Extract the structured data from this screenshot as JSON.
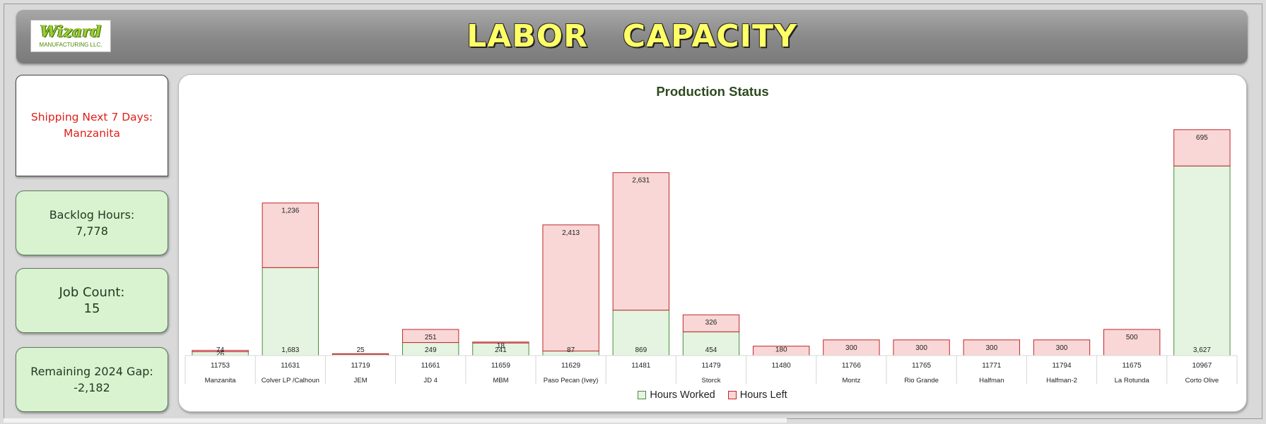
{
  "header": {
    "logo_brand": "Wizard",
    "logo_sub": "MANUFACTURING LLC.",
    "title": "LABOR  CAPACITY"
  },
  "cards": {
    "shipping": {
      "label": "Shipping Next 7 Days:",
      "value": "Manzanita"
    },
    "backlog": {
      "label": "Backlog Hours:",
      "value": "7,778"
    },
    "jobs": {
      "label": "Job Count:",
      "value": "15"
    },
    "gap": {
      "label": "Remaining 2024 Gap:",
      "value": "-2,182"
    }
  },
  "colors": {
    "worked_fill": "#e4f4e0",
    "worked_stroke": "#4f8a3f",
    "left_fill": "#f8d7d6",
    "left_stroke": "#c0262b"
  },
  "chart_data": {
    "type": "bar",
    "stacked": true,
    "title": "Production Status",
    "ylim": [
      0,
      4400
    ],
    "grid": false,
    "legend_position": "bottom",
    "jobs": [
      "11753",
      "11631",
      "11719",
      "11661",
      "11659",
      "11629",
      "11481",
      "11479",
      "11480",
      "11766",
      "11765",
      "11771",
      "11794",
      "11675",
      "10967"
    ],
    "customers": [
      {
        "name": "Manzanita",
        "span": 1
      },
      {
        "name": "Colver LP /Calhoun",
        "span": 1
      },
      {
        "name": "JEM",
        "span": 1
      },
      {
        "name": "JD 4",
        "span": 1
      },
      {
        "name": "MBM",
        "span": 1
      },
      {
        "name": "Paso Pecan (Ivey)",
        "span": 1
      },
      {
        "name": "Storck",
        "span": 3
      },
      {
        "name": "Montz",
        "span": 1
      },
      {
        "name": "Rio Grande",
        "span": 1
      },
      {
        "name": "Halfman",
        "span": 1
      },
      {
        "name": "Halfman-2",
        "span": 1
      },
      {
        "name": "La Rotunda",
        "span": 1
      },
      {
        "name": "Corto Olive",
        "span": 1
      }
    ],
    "series": [
      {
        "name": "Hours Worked",
        "values": [
          74,
          1683,
          25,
          249,
          241,
          87,
          869,
          454,
          0,
          0,
          0,
          0,
          0,
          0,
          3627
        ],
        "labels": [
          "74",
          "1,683",
          "25",
          "249",
          "241",
          "87",
          "869",
          "454",
          "",
          "",
          "",
          "",
          "",
          "",
          "3,627"
        ]
      },
      {
        "name": "Hours Left",
        "values": [
          26,
          1236,
          10,
          251,
          18,
          2413,
          2631,
          326,
          180,
          300,
          300,
          300,
          300,
          500,
          695
        ],
        "labels": [
          "26",
          "1,236",
          "",
          "251",
          "18",
          "2,413",
          "2,631",
          "326",
          "180",
          "300",
          "300",
          "300",
          "300",
          "500",
          "695"
        ]
      }
    ]
  }
}
